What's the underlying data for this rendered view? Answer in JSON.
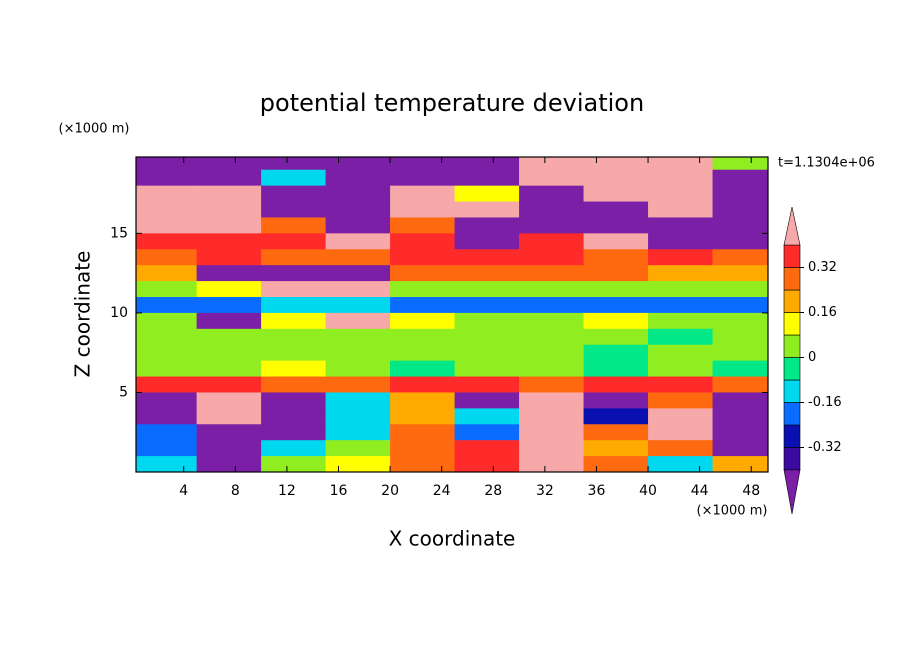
{
  "chart_data": {
    "type": "contourf",
    "title": "potential temperature deviation",
    "xlabel": "X coordinate",
    "ylabel": "Z coordinate",
    "x_unit": "(×1000 m)",
    "y_unit": "(×1000 m)",
    "annotation": "t=1.1304e+06",
    "xlim": [
      0.3,
      49.3
    ],
    "ylim": [
      0,
      19.8
    ],
    "xticks": [
      4,
      8,
      12,
      16,
      20,
      24,
      28,
      32,
      36,
      40,
      44,
      48
    ],
    "yticks": [
      5,
      10,
      15
    ],
    "x": [
      2.5,
      7.5,
      12.5,
      17.5,
      22.5,
      27.5,
      32.5,
      37.5,
      42.5,
      47.5
    ],
    "y": [
      19.5,
      18.5,
      17.5,
      16.5,
      15.5,
      14.5,
      13.5,
      12.5,
      11.5,
      10.5,
      9.5,
      8.5,
      7.5,
      6.5,
      5.5,
      4.5,
      3.5,
      2.5,
      1.5,
      0.5
    ],
    "z": [
      [
        -0.45,
        -0.45,
        -0.45,
        -0.45,
        -0.45,
        -0.45,
        0.45,
        0.45,
        0.45,
        0.05
      ],
      [
        -0.45,
        -0.45,
        -0.1,
        -0.45,
        -0.45,
        -0.45,
        0.45,
        0.45,
        0.45,
        -0.45
      ],
      [
        0.45,
        0.45,
        -0.45,
        -0.45,
        0.45,
        0.1,
        -0.45,
        0.45,
        0.45,
        -0.45
      ],
      [
        0.45,
        0.45,
        -0.45,
        -0.45,
        0.45,
        0.45,
        -0.45,
        -0.45,
        0.45,
        -0.45
      ],
      [
        0.45,
        0.45,
        0.3,
        -0.45,
        0.3,
        -0.45,
        -0.45,
        -0.45,
        -0.45,
        -0.45
      ],
      [
        0.35,
        0.35,
        0.35,
        0.45,
        0.35,
        -0.45,
        0.35,
        0.45,
        -0.45,
        -0.45
      ],
      [
        0.3,
        0.35,
        0.3,
        0.3,
        0.35,
        0.35,
        0.35,
        0.3,
        0.35,
        0.3
      ],
      [
        0.2,
        -0.45,
        -0.45,
        -0.45,
        0.25,
        0.25,
        0.3,
        0.25,
        0.2,
        0.2
      ],
      [
        0.05,
        0.1,
        0.45,
        0.45,
        0.05,
        0,
        0.05,
        0.05,
        0.05,
        0.05
      ],
      [
        -0.2,
        -0.2,
        -0.1,
        -0.1,
        -0.2,
        -0.2,
        -0.2,
        -0.2,
        -0.2,
        -0.2
      ],
      [
        0.05,
        -0.45,
        0.1,
        0.45,
        0.1,
        0.05,
        0.05,
        0.1,
        0.05,
        0.05
      ],
      [
        0.05,
        0.05,
        0.05,
        0.05,
        0.05,
        0.05,
        0.05,
        0.05,
        -0.02,
        0.05
      ],
      [
        0.05,
        0.05,
        0.05,
        0.05,
        0.05,
        0.05,
        0.05,
        -0.02,
        0.05,
        0.05
      ],
      [
        0.05,
        0.05,
        0.1,
        0.05,
        -0.02,
        0.05,
        0.05,
        -0.02,
        0.05,
        -0.02
      ],
      [
        0.35,
        0.35,
        0.3,
        0.3,
        0.35,
        0.35,
        0.3,
        0.35,
        0.35,
        0.3
      ],
      [
        -0.45,
        0.45,
        -0.45,
        -0.1,
        0.2,
        -0.45,
        0.45,
        -0.45,
        0.3,
        -0.45
      ],
      [
        -0.45,
        0.45,
        -0.45,
        -0.1,
        0.2,
        -0.1,
        0.45,
        -0.3,
        0.45,
        -0.45
      ],
      [
        -0.2,
        -0.45,
        -0.45,
        -0.1,
        0.3,
        -0.2,
        0.45,
        0.3,
        0.45,
        -0.45
      ],
      [
        -0.2,
        -0.45,
        -0.1,
        0.05,
        0.3,
        0.35,
        0.45,
        0.2,
        0.3,
        -0.45
      ],
      [
        -0.1,
        -0.45,
        0,
        0.1,
        0.3,
        0.35,
        0.45,
        0.3,
        -0.1,
        0.2
      ]
    ],
    "levels": [
      -0.4,
      -0.32,
      -0.24,
      -0.16,
      -0.08,
      0,
      0.08,
      0.16,
      0.24,
      0.32,
      0.4
    ],
    "colors": [
      "#7a1fa6",
      "#3a0aa0",
      "#0a10b0",
      "#0a6cff",
      "#00d8f0",
      "#00e888",
      "#90ee20",
      "#ffff00",
      "#ffaa00",
      "#ff6a10",
      "#ff2a2a",
      "#f7a8a8"
    ],
    "colorbar_ticks": [
      -0.32,
      -0.16,
      0,
      0.16,
      0.32
    ]
  }
}
